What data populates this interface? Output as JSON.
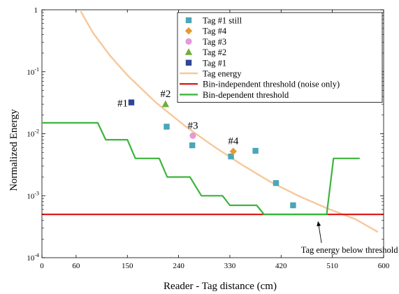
{
  "chart_data": {
    "type": "scatter",
    "xlabel": "Reader - Tag distance (cm)",
    "ylabel": "Normalized Energy",
    "x_scale": "linear",
    "y_scale": "log",
    "xlim": [
      0,
      600
    ],
    "ylim": [
      0.0001,
      1
    ],
    "x_ticks": [
      "0",
      "60",
      "150",
      "240",
      "330",
      "420",
      "510",
      "600"
    ],
    "x_tick_values": [
      0,
      60,
      150,
      240,
      330,
      420,
      510,
      600
    ],
    "y_ticks": [
      {
        "value": 1,
        "base": "1",
        "exp": ""
      },
      {
        "value": 0.1,
        "base": "10",
        "exp": "-1"
      },
      {
        "value": 0.01,
        "base": "10",
        "exp": "-2"
      },
      {
        "value": 0.001,
        "base": "10",
        "exp": "-3"
      },
      {
        "value": 0.0001,
        "base": "10",
        "exp": "-4"
      }
    ],
    "grid": false,
    "legend_position": "top-right",
    "series": [
      {
        "name": "Tag #1 still",
        "kind": "marker",
        "marker": "square",
        "color": "#4aa6b8",
        "points": [
          [
            219,
            0.013
          ],
          [
            264,
            0.0065
          ],
          [
            332,
            0.0043
          ],
          [
            375,
            0.0053
          ],
          [
            411,
            0.0016
          ],
          [
            441,
            0.0007
          ]
        ]
      },
      {
        "name": "Tag #4",
        "kind": "marker",
        "marker": "diamond",
        "color": "#e89a2c",
        "points": [
          [
            336,
            0.0052
          ]
        ]
      },
      {
        "name": "Tag #3",
        "kind": "marker",
        "marker": "circle",
        "color": "#e59ad6",
        "points": [
          [
            265,
            0.0093
          ]
        ]
      },
      {
        "name": "Tag #2",
        "kind": "marker",
        "marker": "triangle",
        "color": "#6fae37",
        "points": [
          [
            217,
            0.03
          ]
        ]
      },
      {
        "name": "Tag #1",
        "kind": "marker",
        "marker": "square",
        "color": "#2e4694",
        "points": [
          [
            157,
            0.032
          ]
        ]
      },
      {
        "name": "Tag energy",
        "kind": "line",
        "color": "#f6c89a",
        "points": [
          [
            68,
            0.95
          ],
          [
            90,
            0.42
          ],
          [
            120,
            0.18
          ],
          [
            150,
            0.088
          ],
          [
            200,
            0.032
          ],
          [
            250,
            0.0136
          ],
          [
            300,
            0.0064
          ],
          [
            350,
            0.0032
          ],
          [
            400,
            0.0017
          ],
          [
            450,
            0.001
          ],
          [
            500,
            0.00063
          ],
          [
            550,
            0.00042
          ],
          [
            590,
            0.00026
          ]
        ]
      },
      {
        "name": "Bin-independent threshold (noise only)",
        "kind": "line",
        "color": "#dd1d1d",
        "points": [
          [
            0,
            0.0005
          ],
          [
            600,
            0.0005
          ]
        ]
      },
      {
        "name": "Bin-dependent threshold",
        "kind": "line",
        "color": "#3cb43c",
        "points": [
          [
            0,
            0.015
          ],
          [
            98,
            0.015
          ],
          [
            112,
            0.008
          ],
          [
            150,
            0.008
          ],
          [
            164,
            0.004
          ],
          [
            206,
            0.004
          ],
          [
            220,
            0.002
          ],
          [
            260,
            0.002
          ],
          [
            280,
            0.001
          ],
          [
            317,
            0.001
          ],
          [
            330,
            0.0007
          ],
          [
            377,
            0.0007
          ],
          [
            390,
            0.0005
          ],
          [
            500,
            0.0005
          ],
          [
            512,
            0.004
          ],
          [
            558,
            0.004
          ]
        ]
      }
    ],
    "annotations": [
      {
        "text": "#1",
        "x": 157,
        "y": 0.032,
        "style": "large"
      },
      {
        "text": "#2",
        "x": 217,
        "y": 0.03,
        "style": "large"
      },
      {
        "text": "#3",
        "x": 265,
        "y": 0.0093,
        "style": "large"
      },
      {
        "text": "#4",
        "x": 336,
        "y": 0.0052,
        "style": "large"
      },
      {
        "text": "Tag energy below threshold",
        "x": 540,
        "y": 0.00012,
        "arrow_to": [
          485,
          0.00042
        ],
        "style": "small"
      }
    ]
  }
}
